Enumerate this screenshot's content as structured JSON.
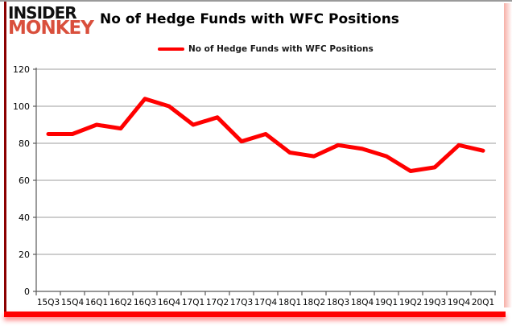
{
  "brand": {
    "line1": "INSIDER",
    "line2": "MONKEY"
  },
  "header": {
    "title": "No of Hedge Funds with WFC Positions"
  },
  "legend": {
    "label": "No of Hedge Funds with WFC Positions"
  },
  "colors": {
    "line": "#ff0000",
    "grid": "#9c9c9c",
    "axis": "#595959",
    "logo_top": "#111111",
    "logo_bottom": "#d94f3c",
    "frame_left": "#8b0000",
    "frame_bottom": "#ff0000",
    "frame_top": "#9a9a9a"
  },
  "chart_data": {
    "type": "line",
    "title": "No of Hedge Funds with WFC Positions",
    "categories": [
      "15Q3",
      "15Q4",
      "16Q1",
      "16Q2",
      "16Q3",
      "16Q4",
      "17Q1",
      "17Q2",
      "17Q3",
      "17Q4",
      "18Q1",
      "18Q2",
      "18Q3",
      "18Q4",
      "19Q1",
      "19Q2",
      "19Q3",
      "19Q4",
      "20Q1"
    ],
    "series": [
      {
        "name": "No of Hedge Funds with WFC Positions",
        "color": "#ff0000",
        "values": [
          85,
          85,
          90,
          88,
          104,
          100,
          90,
          94,
          81,
          85,
          75,
          73,
          79,
          77,
          73,
          65,
          67,
          79,
          76
        ]
      }
    ],
    "xlabel": "",
    "ylabel": "",
    "ylim": [
      0,
      120
    ],
    "yticks": [
      0,
      20,
      40,
      60,
      80,
      100,
      120
    ],
    "grid": true,
    "legend_position": "top"
  }
}
